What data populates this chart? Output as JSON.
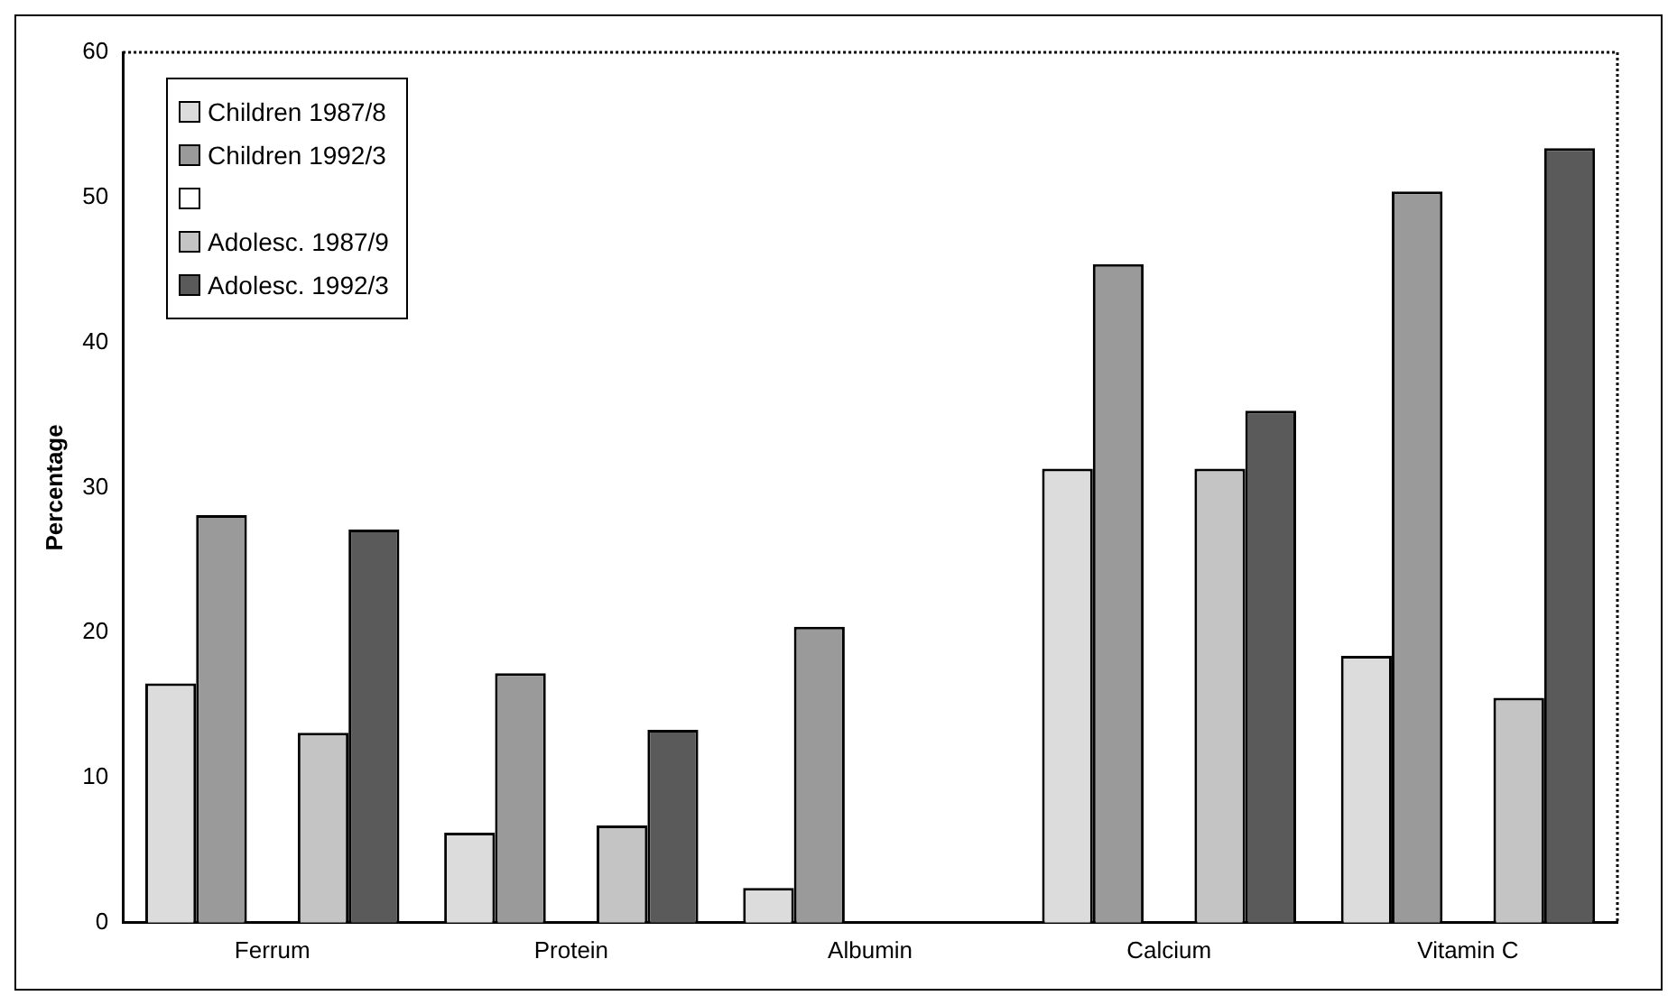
{
  "chart_data": {
    "type": "bar",
    "ylabel": "Percentage",
    "categories": [
      "Ferrum",
      "Protein",
      "Albumin",
      "Calcium",
      "Vitamin C"
    ],
    "series": [
      {
        "name": "Children 1987/8",
        "color": "#dcdcdc",
        "values": [
          16.5,
          6.2,
          2.4,
          31.3,
          18.4
        ]
      },
      {
        "name": "Children 1992/3",
        "color": "#9a9a9a",
        "values": [
          28.1,
          17.2,
          20.4,
          45.4,
          50.4
        ]
      },
      {
        "color": "#ffffff",
        "values": [
          null,
          null,
          null,
          null,
          null
        ]
      },
      {
        "name": "Adolesc. 1987/9",
        "color": "#c4c4c4",
        "values": [
          13.1,
          6.7,
          null,
          31.3,
          15.5
        ]
      },
      {
        "name": "Adolesc. 1992/3",
        "color": "#5a5a5a",
        "values": [
          27.1,
          13.3,
          null,
          35.3,
          53.4
        ]
      }
    ],
    "ylim": [
      0,
      60
    ],
    "yticks": [
      0,
      10,
      20,
      30,
      40,
      50,
      60
    ],
    "grid": false,
    "legend": "top left"
  }
}
